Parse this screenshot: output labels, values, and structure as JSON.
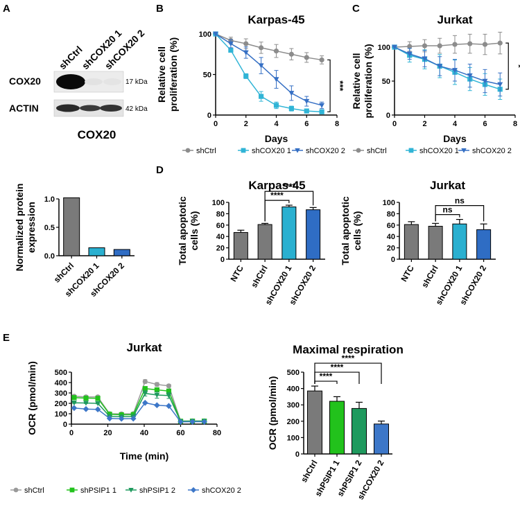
{
  "panels": {
    "A": "A",
    "B": "B",
    "C": "C",
    "D": "D",
    "E": "E"
  },
  "western_blot": {
    "lanes": [
      "shCtrl",
      "shCOX20 1",
      "shCOX20 2"
    ],
    "rows": [
      {
        "protein": "COX20",
        "size": "17 kDa",
        "intensities": [
          1.0,
          0.05,
          0.05
        ]
      },
      {
        "protein": "ACTIN",
        "size": "42 kDa",
        "intensities": [
          0.75,
          0.6,
          0.7
        ]
      }
    ]
  },
  "chart_data": [
    {
      "id": "a_bar",
      "type": "bar",
      "title": "COX20",
      "xlabel": "",
      "ylabel": "Normalized protein expression",
      "ylabel_lines": [
        "Normalized protein",
        "expression"
      ],
      "categories": [
        "shCtrl",
        "shCOX20 1",
        "shCOX20 2"
      ],
      "values": [
        1.02,
        0.14,
        0.11
      ],
      "colors": [
        "#7a7a7a",
        "#2ab0d0",
        "#2f6dc4"
      ],
      "ylim": [
        0,
        1.0
      ],
      "yticks": [
        "0.0",
        "0.5",
        "1.0"
      ]
    },
    {
      "id": "b_line",
      "type": "line",
      "title": "Karpas-45",
      "xlabel": "Days",
      "ylabel": "Relative cell proliferation (%)",
      "ylabel_lines": [
        "Relative cell",
        "proliferation (%)"
      ],
      "xlim": [
        0,
        8
      ],
      "ylim": [
        0,
        100
      ],
      "xticks": [
        "0",
        "2",
        "4",
        "6",
        "8"
      ],
      "yticks": [
        "0",
        "50",
        "100"
      ],
      "series": [
        {
          "name": "shCtrl",
          "color": "#8c8c8c",
          "marker": "circle",
          "x": [
            0,
            1,
            2,
            3,
            4,
            5,
            6,
            7
          ],
          "y": [
            100,
            92,
            88,
            83,
            79,
            75,
            71,
            68
          ],
          "err": [
            0,
            4,
            6,
            7,
            8,
            7,
            6,
            5
          ]
        },
        {
          "name": "shCOX20 1",
          "color": "#30b4d6",
          "marker": "square",
          "x": [
            0,
            1,
            2,
            3,
            4,
            5,
            6,
            7
          ],
          "y": [
            100,
            80,
            48,
            23,
            12,
            8,
            5,
            4
          ],
          "err": [
            0,
            2,
            3,
            6,
            4,
            3,
            2,
            1
          ]
        },
        {
          "name": "shCOX20 2",
          "color": "#356fc4",
          "marker": "triangle",
          "x": [
            0,
            1,
            2,
            3,
            4,
            5,
            6,
            7
          ],
          "y": [
            100,
            88,
            77,
            61,
            44,
            27,
            17,
            12
          ],
          "err": [
            0,
            5,
            7,
            10,
            11,
            9,
            6,
            4
          ]
        }
      ],
      "significance": "***"
    },
    {
      "id": "c_line",
      "type": "line",
      "title": "Jurkat",
      "xlabel": "Days",
      "ylabel": "Relative cell proliferation (%)",
      "ylabel_lines": [
        "Relative cell",
        "proliferation (%)"
      ],
      "xlim": [
        0,
        8
      ],
      "ylim": [
        0,
        100
      ],
      "xticks": [
        "0",
        "2",
        "4",
        "6",
        "8"
      ],
      "yticks": [
        "0",
        "50",
        "100"
      ],
      "series": [
        {
          "name": "shCtrl",
          "color": "#8c8c8c",
          "marker": "circle",
          "x": [
            0,
            1,
            2,
            3,
            4,
            5,
            6,
            7
          ],
          "y": [
            100,
            101,
            102,
            102,
            104,
            105,
            104,
            106
          ],
          "err": [
            0,
            7,
            9,
            11,
            13,
            14,
            15,
            16
          ]
        },
        {
          "name": "shCOX20 1",
          "color": "#30b4d6",
          "marker": "square",
          "x": [
            0,
            1,
            2,
            3,
            4,
            5,
            6,
            7
          ],
          "y": [
            100,
            88,
            82,
            72,
            63,
            53,
            45,
            38
          ],
          "err": [
            0,
            10,
            14,
            17,
            18,
            17,
            16,
            15
          ]
        },
        {
          "name": "shCOX20 2",
          "color": "#356fc4",
          "marker": "triangle",
          "x": [
            0,
            1,
            2,
            3,
            4,
            5,
            6,
            7
          ],
          "y": [
            100,
            90,
            83,
            72,
            66,
            58,
            50,
            45
          ],
          "err": [
            0,
            8,
            12,
            14,
            16,
            17,
            17,
            17
          ]
        }
      ],
      "significance": "*"
    },
    {
      "id": "d_bar1",
      "type": "bar",
      "title": "Karpas-45",
      "xlabel": "",
      "ylabel": "Total apoptotic cells (%)",
      "ylabel_lines": [
        "Total apoptotic",
        "cells (%)"
      ],
      "categories": [
        "NTC",
        "shCtrl",
        "shCOX20 1",
        "shCOX20 2"
      ],
      "values": [
        47,
        61,
        92,
        87
      ],
      "err": [
        4,
        2,
        3,
        4
      ],
      "colors": [
        "#7a7a7a",
        "#7a7a7a",
        "#2ab0d0",
        "#2f6dc4"
      ],
      "ylim": [
        0,
        100
      ],
      "yticks": [
        "0",
        "20",
        "40",
        "60",
        "80",
        "100"
      ],
      "brackets": [
        {
          "from": 1,
          "to": 2,
          "label": "****"
        },
        {
          "from": 1,
          "to": 3,
          "label": "****"
        }
      ]
    },
    {
      "id": "d_bar2",
      "type": "bar",
      "title": "Jurkat",
      "xlabel": "",
      "ylabel": "Total apoptotic cells (%)",
      "ylabel_lines": [
        "Total apoptotic",
        "cells (%)"
      ],
      "categories": [
        "NTC",
        "shCtrl",
        "shCOX20 1",
        "shCOX20 2"
      ],
      "values": [
        61,
        58,
        62,
        52
      ],
      "err": [
        5,
        5,
        8,
        10
      ],
      "colors": [
        "#7a7a7a",
        "#7a7a7a",
        "#2ab0d0",
        "#2f6dc4"
      ],
      "ylim": [
        0,
        100
      ],
      "yticks": [
        "0",
        "20",
        "40",
        "60",
        "80",
        "100"
      ],
      "brackets": [
        {
          "from": 1,
          "to": 2,
          "label": "ns"
        },
        {
          "from": 1,
          "to": 3,
          "label": "ns"
        }
      ]
    },
    {
      "id": "e_line",
      "type": "line",
      "title": "Jurkat",
      "xlabel": "Time (min)",
      "ylabel": "OCR (pmol/min)",
      "ylabel_lines": [
        "OCR (pmol/min)"
      ],
      "xlim": [
        0,
        80
      ],
      "ylim": [
        0,
        500
      ],
      "xticks": [
        "0",
        "20",
        "40",
        "60",
        "80"
      ],
      "yticks": [
        "0",
        "100",
        "200",
        "300",
        "400",
        "500"
      ],
      "series": [
        {
          "name": "shCtrl",
          "color": "#9a9a9a",
          "marker": "circle",
          "x": [
            1.5,
            8,
            14.5,
            21,
            27.5,
            34,
            40.5,
            47,
            53.5,
            60,
            66.5,
            73
          ],
          "y": [
            268,
            262,
            262,
            100,
            98,
            100,
            410,
            382,
            368,
            30,
            31,
            31
          ],
          "err": [
            5,
            5,
            5,
            5,
            5,
            6,
            18,
            18,
            15,
            4,
            4,
            4
          ]
        },
        {
          "name": "shPSIP1 1",
          "color": "#22c21c",
          "marker": "square",
          "x": [
            1.5,
            8,
            14.5,
            21,
            27.5,
            34,
            40.5,
            47,
            53.5,
            60,
            66.5,
            73
          ],
          "y": [
            255,
            250,
            248,
            95,
            90,
            92,
            342,
            330,
            318,
            28,
            29,
            29
          ],
          "err": [
            5,
            5,
            5,
            4,
            4,
            4,
            15,
            15,
            15,
            4,
            4,
            4
          ]
        },
        {
          "name": "shPSIP1 2",
          "color": "#1f9a5e",
          "marker": "triangle",
          "x": [
            1.5,
            8,
            14.5,
            21,
            27.5,
            34,
            40.5,
            47,
            53.5,
            60,
            66.5,
            73
          ],
          "y": [
            205,
            203,
            200,
            75,
            72,
            74,
            296,
            280,
            275,
            25,
            27,
            27
          ],
          "err": [
            5,
            5,
            5,
            4,
            4,
            4,
            25,
            30,
            28,
            4,
            4,
            4
          ]
        },
        {
          "name": "shCOX20 2",
          "color": "#3d77c8",
          "marker": "diamond",
          "x": [
            1.5,
            8,
            14.5,
            21,
            27.5,
            34,
            40.5,
            47,
            53.5,
            60,
            66.5,
            73
          ],
          "y": [
            155,
            145,
            142,
            55,
            52,
            53,
            205,
            182,
            175,
            22,
            23,
            23
          ],
          "err": [
            4,
            4,
            4,
            3,
            3,
            3,
            8,
            8,
            8,
            3,
            3,
            3
          ]
        }
      ]
    },
    {
      "id": "e_bar",
      "type": "bar",
      "title": "Maximal respiration",
      "xlabel": "",
      "ylabel": "OCR (pmol/min)",
      "ylabel_lines": [
        "OCR (pmol/min)"
      ],
      "categories": [
        "shCtrl",
        "shPSIP1 1",
        "shPSIP1 2",
        "shCOX20 2"
      ],
      "values": [
        385,
        322,
        278,
        183
      ],
      "err": [
        30,
        28,
        38,
        18
      ],
      "colors": [
        "#7a7a7a",
        "#22c21c",
        "#1f9a5e",
        "#3d77c8"
      ],
      "ylim": [
        0,
        500
      ],
      "yticks": [
        "0",
        "100",
        "200",
        "300",
        "400",
        "500"
      ],
      "brackets": [
        {
          "from": 0,
          "to": 1,
          "label": "****"
        },
        {
          "from": 0,
          "to": 2,
          "label": "****"
        },
        {
          "from": 0,
          "to": 3,
          "label": "****"
        }
      ]
    }
  ]
}
